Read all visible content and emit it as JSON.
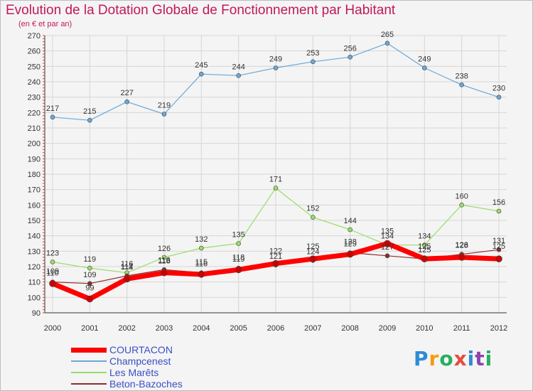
{
  "title": "Evolution de la Dotation Globale de Fonctionnement par Habitant",
  "subtitle": "(en € et par an)",
  "logo": {
    "text": "Proxiti",
    "letter_colors": [
      "#2e8bd6",
      "#f39c12",
      "#27ae60",
      "#e74c3c",
      "#2e8bd6",
      "#8e44ad",
      "#27ae60"
    ]
  },
  "chart_data": {
    "type": "line",
    "title": "Evolution de la Dotation Globale de Fonctionnement par Habitant",
    "subtitle": "(en € et par an)",
    "x": [
      "2000",
      "2001",
      "2002",
      "2003",
      "2004",
      "2005",
      "2006",
      "2007",
      "2008",
      "2009",
      "2010",
      "2011",
      "2012"
    ],
    "ylim": [
      90,
      270
    ],
    "yticks": [
      90,
      100,
      110,
      120,
      130,
      140,
      150,
      160,
      170,
      180,
      190,
      200,
      210,
      220,
      230,
      240,
      250,
      260,
      270
    ],
    "grid": true,
    "legend_position": "bottom-left",
    "series": [
      {
        "name": "COURTACON",
        "color": "#ff0000",
        "width": 7,
        "values": [
          109,
          99,
          112,
          116,
          115,
          118,
          122,
          125,
          128,
          135,
          125,
          126,
          125
        ]
      },
      {
        "name": "Champcenest",
        "color": "#6aa8d8",
        "width": 1.2,
        "values": [
          217,
          215,
          227,
          219,
          245,
          244,
          249,
          253,
          256,
          265,
          249,
          238,
          230
        ]
      },
      {
        "name": "Les Marêts",
        "color": "#99dd66",
        "width": 1.2,
        "values": [
          123,
          119,
          116,
          126,
          132,
          135,
          171,
          152,
          144,
          134,
          134,
          160,
          156
        ]
      },
      {
        "name": "Beton-Bazoches",
        "color": "#8b2d2d",
        "width": 1.2,
        "values": [
          110,
          109,
          114,
          118,
          116,
          119,
          121,
          124,
          129,
          127,
          125,
          128,
          131
        ]
      }
    ]
  }
}
